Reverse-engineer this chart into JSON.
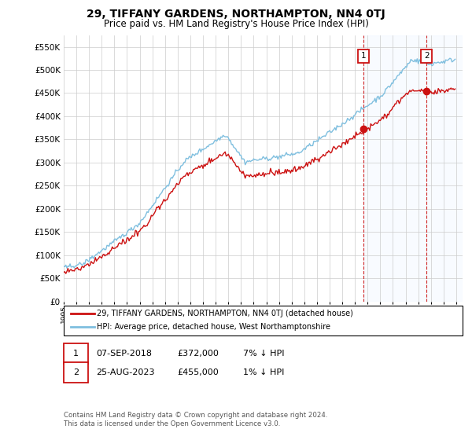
{
  "title": "29, TIFFANY GARDENS, NORTHAMPTON, NN4 0TJ",
  "subtitle": "Price paid vs. HM Land Registry's House Price Index (HPI)",
  "legend_line1": "29, TIFFANY GARDENS, NORTHAMPTON, NN4 0TJ (detached house)",
  "legend_line2": "HPI: Average price, detached house, West Northamptonshire",
  "annotation1": {
    "num": "1",
    "date": "07-SEP-2018",
    "price": "£372,000",
    "pct": "7% ↓ HPI"
  },
  "annotation2": {
    "num": "2",
    "date": "25-AUG-2023",
    "price": "£455,000",
    "pct": "1% ↓ HPI"
  },
  "footer": "Contains HM Land Registry data © Crown copyright and database right 2024.\nThis data is licensed under the Open Government Licence v3.0.",
  "sale1_year": 2018.68,
  "sale1_price": 372000,
  "sale2_year": 2023.65,
  "sale2_price": 455000,
  "hpi_color": "#7fbfdf",
  "sale_color": "#cc1111",
  "vline_color": "#cc1111",
  "box_color": "#cc1111",
  "shade_color": "#ddeeff",
  "background_color": "#ffffff",
  "grid_color": "#cccccc",
  "ylim": [
    0,
    575000
  ],
  "xlim_start": 1995.0,
  "xlim_end": 2026.5,
  "yticks": [
    0,
    50000,
    100000,
    150000,
    200000,
    250000,
    300000,
    350000,
    400000,
    450000,
    500000,
    550000
  ]
}
